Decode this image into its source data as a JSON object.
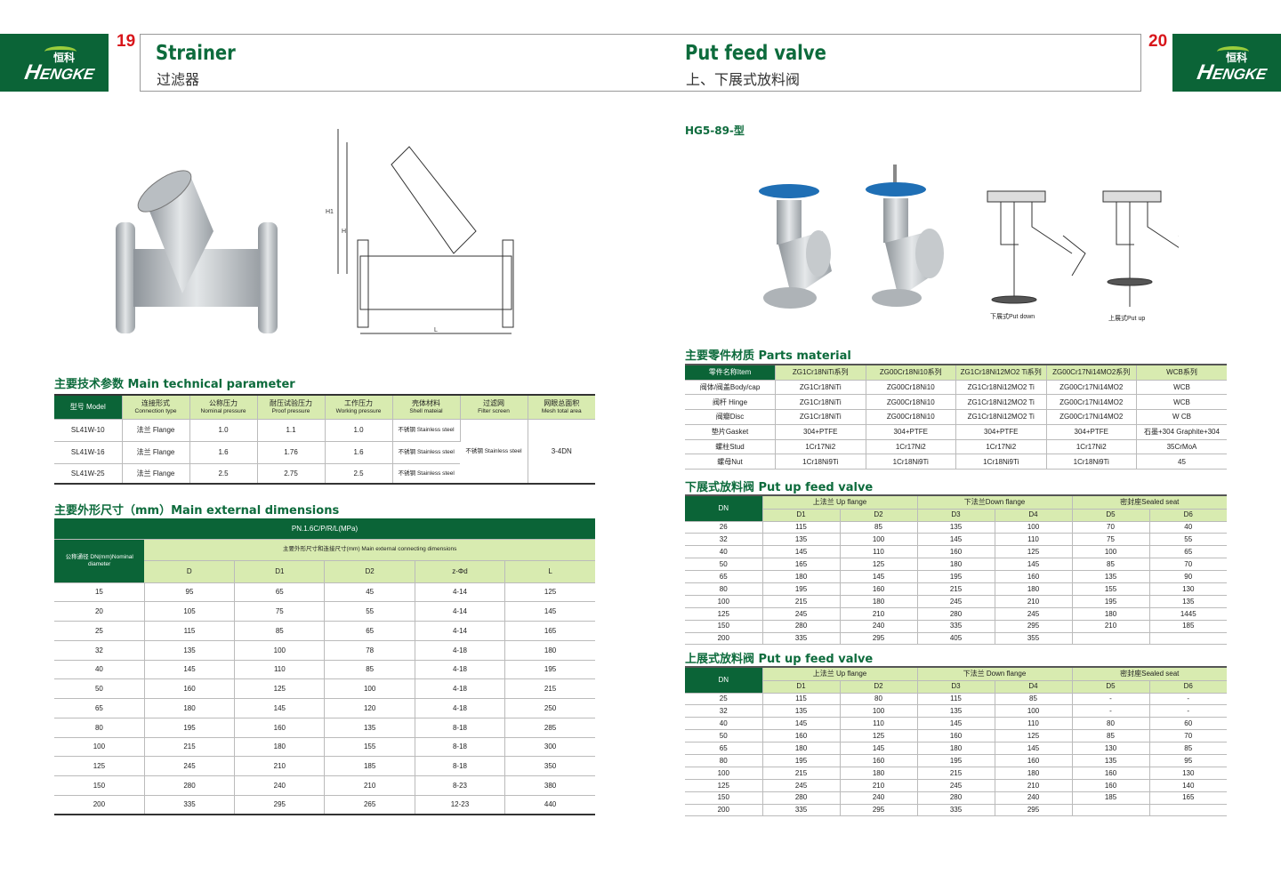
{
  "left_page": {
    "logo": {
      "brand": "ENGKE",
      "brand_cn": "恒科"
    },
    "page_number": "19",
    "title": "Strainer",
    "subtitle": "过滤器",
    "tech": {
      "title": "主要技术参数 Main technical parameter",
      "headers": [
        [
          "型号 Model"
        ],
        [
          "连接形式",
          "Connection type"
        ],
        [
          "公称压力",
          "Nominal pressure"
        ],
        [
          "耐压试验压力",
          "Proof pressure"
        ],
        [
          "工作压力",
          "Working pressure"
        ],
        [
          "壳体材料",
          "Shell mateial"
        ],
        [
          "过滤网",
          "Filter screen"
        ],
        [
          "网眼总面积",
          "Mesh total area"
        ]
      ],
      "rows": [
        [
          "SL41W-10",
          "法兰 Flange",
          "1.0",
          "1.1",
          "1.0",
          "不锈钢 Stainless steel"
        ],
        [
          "SL41W-16",
          "法兰 Flange",
          "1.6",
          "1.76",
          "1.6",
          "不锈钢 Stainless steel"
        ],
        [
          "SL41W-25",
          "法兰 Flange",
          "2.5",
          "2.75",
          "2.5",
          "不锈钢 Stainless steel"
        ]
      ],
      "filter_screen": "不锈钢 Stainless steel",
      "mesh_area": "3-4DN"
    },
    "dims": {
      "title": "主要外形尺寸（mm）Main external dimensions",
      "pn": "PN.1.6C/P/R/L(MPa)",
      "dn_header": "公称通径 DN(mm)Nominal diameter",
      "group_header": "主要外形尺寸和连接尺寸(mm) Main external connecting dimensions",
      "columns": [
        "D",
        "D1",
        "D2",
        "z-Φd",
        "L"
      ],
      "rows": [
        [
          "15",
          "95",
          "65",
          "45",
          "4-14",
          "125"
        ],
        [
          "20",
          "105",
          "75",
          "55",
          "4-14",
          "145"
        ],
        [
          "25",
          "115",
          "85",
          "65",
          "4-14",
          "165"
        ],
        [
          "32",
          "135",
          "100",
          "78",
          "4-18",
          "180"
        ],
        [
          "40",
          "145",
          "110",
          "85",
          "4-18",
          "195"
        ],
        [
          "50",
          "160",
          "125",
          "100",
          "4-18",
          "215"
        ],
        [
          "65",
          "180",
          "145",
          "120",
          "4-18",
          "250"
        ],
        [
          "80",
          "195",
          "160",
          "135",
          "8-18",
          "285"
        ],
        [
          "100",
          "215",
          "180",
          "155",
          "8-18",
          "300"
        ],
        [
          "125",
          "245",
          "210",
          "185",
          "8-18",
          "350"
        ],
        [
          "150",
          "280",
          "240",
          "210",
          "8-23",
          "380"
        ],
        [
          "200",
          "335",
          "295",
          "265",
          "12-23",
          "440"
        ]
      ]
    },
    "drawing_labels": {
      "h1": "H1",
      "h": "H",
      "l": "L"
    }
  },
  "right_page": {
    "logo": {
      "brand": "ENGKE",
      "brand_cn": "恒科"
    },
    "page_number": "20",
    "title": "Put feed valve",
    "subtitle": "上、下展式放料阀",
    "model": "HG5-89-型",
    "captions": {
      "put_down": "下展式Put down",
      "put_up": "上展式Put up"
    },
    "parts": {
      "title": "主要零件材质 Parts material",
      "headers": [
        "零件名称Item",
        "ZG1Cr18NiTi系列",
        "ZG00Cr18Ni10系列",
        "ZG1Cr18Ni12MO2 Ti系列",
        "ZG00Cr17Ni14MO2系列",
        "WCB系列"
      ],
      "rows": [
        [
          "阀体/阀盖Body/cap",
          "ZG1Cr18NiTi",
          "ZG00Cr18Ni10",
          "ZG1Cr18Ni12MO2 Ti",
          "ZG00Cr17Ni14MO2",
          "WCB"
        ],
        [
          "阀杆 Hinge",
          "ZG1Cr18NiTi",
          "ZG00Cr18Ni10",
          "ZG1Cr18Ni12MO2 Ti",
          "ZG00Cr17Ni14MO2",
          "WCB"
        ],
        [
          "阀瓣Disc",
          "ZG1Cr18NiTi",
          "ZG00Cr18Ni10",
          "ZG1Cr18Ni12MO2 Ti",
          "ZG00Cr17Ni14MO2",
          "W CB"
        ],
        [
          "垫片Gasket",
          "304+PTFE",
          "304+PTFE",
          "304+PTFE",
          "304+PTFE",
          "石墨+304 Graphite+304"
        ],
        [
          "螺柱Stud",
          "1Cr17Ni2",
          "1Cr17Ni2",
          "1Cr17Ni2",
          "1Cr17Ni2",
          "35CrMoA"
        ],
        [
          "螺母Nut",
          "1Cr18Ni9Ti",
          "1Cr18Ni9Ti",
          "1Cr18Ni9Ti",
          "1Cr18Ni9Ti",
          "45"
        ]
      ]
    },
    "down": {
      "title": "下展式放料阀 Put up feed valve",
      "groups": [
        "上法兰 Up flange",
        "下法兰Down flange",
        "密封座Sealed seat"
      ],
      "columns": [
        "DN",
        "D1",
        "D2",
        "D3",
        "D4",
        "D5",
        "D6"
      ],
      "rows": [
        [
          "26",
          "115",
          "85",
          "135",
          "100",
          "70",
          "40"
        ],
        [
          "32",
          "135",
          "100",
          "145",
          "110",
          "75",
          "55"
        ],
        [
          "40",
          "145",
          "110",
          "160",
          "125",
          "100",
          "65"
        ],
        [
          "50",
          "165",
          "125",
          "180",
          "145",
          "85",
          "70"
        ],
        [
          "65",
          "180",
          "145",
          "195",
          "160",
          "135",
          "90"
        ],
        [
          "80",
          "195",
          "160",
          "215",
          "180",
          "155",
          "130"
        ],
        [
          "100",
          "215",
          "180",
          "245",
          "210",
          "195",
          "135"
        ],
        [
          "125",
          "245",
          "210",
          "280",
          "245",
          "180",
          "1445"
        ],
        [
          "150",
          "280",
          "240",
          "335",
          "295",
          "210",
          "185"
        ],
        [
          "200",
          "335",
          "295",
          "405",
          "355",
          "",
          ""
        ]
      ]
    },
    "up": {
      "title": "上展式放料阀 Put up feed valve",
      "groups": [
        "上法兰 Up flange",
        "下法兰 Down flange",
        "密封座Sealed seat"
      ],
      "columns": [
        "DN",
        "D1",
        "D2",
        "D3",
        "D4",
        "D5",
        "D6"
      ],
      "rows": [
        [
          "25",
          "115",
          "80",
          "115",
          "85",
          "-",
          "-"
        ],
        [
          "32",
          "135",
          "100",
          "135",
          "100",
          "-",
          "-"
        ],
        [
          "40",
          "145",
          "110",
          "145",
          "110",
          "80",
          "60"
        ],
        [
          "50",
          "160",
          "125",
          "160",
          "125",
          "85",
          "70"
        ],
        [
          "65",
          "180",
          "145",
          "180",
          "145",
          "130",
          "85"
        ],
        [
          "80",
          "195",
          "160",
          "195",
          "160",
          "135",
          "95"
        ],
        [
          "100",
          "215",
          "180",
          "215",
          "180",
          "160",
          "130"
        ],
        [
          "125",
          "245",
          "210",
          "245",
          "210",
          "160",
          "140"
        ],
        [
          "150",
          "280",
          "240",
          "280",
          "240",
          "185",
          "165"
        ],
        [
          "200",
          "335",
          "295",
          "335",
          "295",
          "",
          ""
        ]
      ]
    }
  },
  "colors": {
    "brand_green": "#0b6437",
    "header_light": "#d8ebb0",
    "page_number_red": "#d8161b",
    "valve_handwheel": "#1f6fb5"
  }
}
